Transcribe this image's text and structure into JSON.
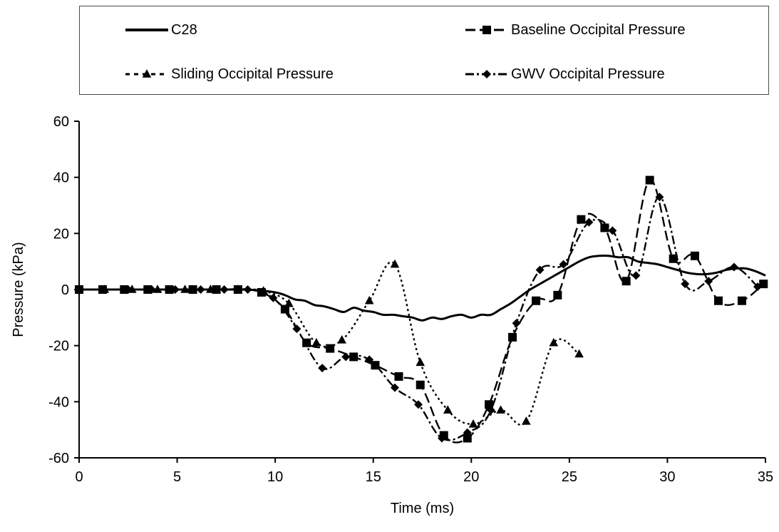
{
  "chart_data": {
    "type": "line",
    "xlabel": "Time (ms)",
    "ylabel": "Pressure (kPa)",
    "xlim": [
      0,
      35
    ],
    "ylim": [
      -60,
      60
    ],
    "xticks": [
      0,
      5,
      10,
      15,
      20,
      25,
      30,
      35
    ],
    "yticks": [
      -60,
      -40,
      -20,
      0,
      20,
      40,
      60
    ],
    "grid": false,
    "legend_position": "top (boxed, above plot)",
    "series": [
      {
        "name": "C28",
        "line_style": "solid",
        "marker": "none",
        "color": "#000000",
        "x": [
          0,
          2,
          4,
          6,
          8,
          9,
          10,
          10.5,
          11,
          11.5,
          12,
          12.5,
          13,
          13.5,
          14,
          14.5,
          15,
          15.5,
          16,
          16.5,
          17,
          17.5,
          18,
          18.5,
          19,
          19.5,
          20,
          20.5,
          21,
          21.5,
          22,
          22.5,
          23,
          23.5,
          24,
          24.5,
          25,
          25.5,
          26,
          26.5,
          27,
          27.5,
          28,
          28.5,
          29,
          29.5,
          30,
          30.5,
          31,
          31.5,
          32,
          32.5,
          33,
          33.5,
          34,
          34.5,
          35
        ],
        "y": [
          0,
          0,
          0,
          0,
          0,
          -0.2,
          -1,
          -2,
          -3.5,
          -4,
          -5.5,
          -6,
          -7,
          -8,
          -6.5,
          -7.5,
          -8,
          -9,
          -9,
          -9.5,
          -10,
          -11,
          -10,
          -10.5,
          -9.5,
          -9,
          -10,
          -9,
          -9,
          -7,
          -5,
          -2.5,
          0,
          2,
          4,
          6,
          8,
          10,
          11.5,
          12,
          12,
          11.5,
          11.5,
          10,
          9.5,
          9,
          8,
          7,
          6,
          5.5,
          5.5,
          6,
          7,
          7.5,
          7.5,
          6.5,
          5
        ]
      },
      {
        "name": "Baseline Occipital Pressure",
        "line_style": "long-dash",
        "marker": "square",
        "color": "#000000",
        "x": [
          0,
          1.2,
          2.3,
          3.5,
          4.6,
          5.8,
          7.0,
          8.1,
          9.3,
          10.5,
          11.6,
          12.8,
          14.0,
          15.1,
          16.3,
          17.4,
          18.6,
          19.8,
          20.9,
          22.1,
          23.3,
          24.4,
          25.6,
          26.8,
          27.9,
          29.1,
          30.3,
          31.4,
          32.6,
          33.8,
          34.9
        ],
        "y": [
          0,
          0,
          0,
          0,
          0,
          0,
          0,
          0,
          -1,
          -7,
          -19,
          -21,
          -24,
          -27,
          -31,
          -34,
          -52,
          -53,
          -41,
          -17,
          -4,
          -2,
          25,
          22,
          3,
          39,
          11,
          12,
          -4,
          -4,
          2
        ]
      },
      {
        "name": "Sliding Occipital Pressure",
        "line_style": "dotted",
        "marker": "triangle",
        "color": "#000000",
        "x": [
          0,
          1.3,
          2.7,
          4.0,
          5.4,
          6.7,
          8.1,
          9.4,
          10.7,
          12.1,
          13.4,
          14.8,
          16.1,
          17.4,
          18.8,
          20.1,
          21.5,
          22.8,
          24.2,
          25.5
        ],
        "y": [
          0,
          0,
          0,
          0,
          0,
          0,
          0,
          -0.5,
          -5,
          -19,
          -18,
          -4,
          9,
          -26,
          -43,
          -48,
          -43,
          -47,
          -19,
          -23
        ]
      },
      {
        "name": "GWV Occipital Pressure",
        "line_style": "dash-dot",
        "marker": "diamond",
        "color": "#000000",
        "x": [
          0,
          1.2,
          2.5,
          3.7,
          4.9,
          6.2,
          7.4,
          8.6,
          9.9,
          11.1,
          12.4,
          13.6,
          14.8,
          16.1,
          17.3,
          18.5,
          19.8,
          21.0,
          22.3,
          23.5,
          24.7,
          26.0,
          27.2,
          28.4,
          29.6,
          30.9,
          32.1,
          33.4,
          34.6
        ],
        "y": [
          0,
          0,
          0,
          0,
          0,
          0,
          0,
          0,
          -3,
          -14,
          -28,
          -24,
          -25,
          -35,
          -41,
          -53,
          -51,
          -43,
          -12,
          7,
          9,
          24,
          21,
          5,
          33,
          2,
          3,
          8,
          1
        ]
      }
    ]
  }
}
